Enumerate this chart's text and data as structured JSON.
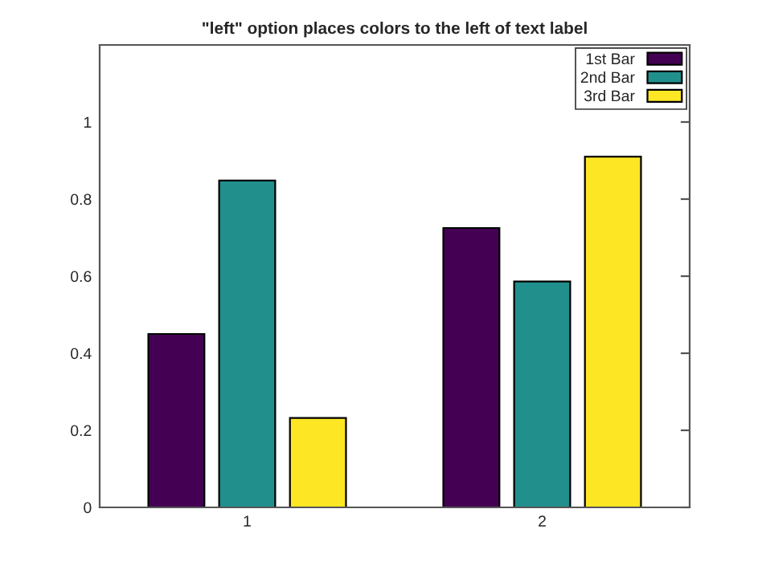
{
  "chart_data": {
    "type": "bar",
    "title": "\"left\" option places colors to the left of text label",
    "categories": [
      "1",
      "2"
    ],
    "series": [
      {
        "name": "1st Bar",
        "color": "#440154",
        "values": [
          0.45,
          0.725
        ]
      },
      {
        "name": "2nd Bar",
        "color": "#21908d",
        "values": [
          0.848,
          0.586
        ]
      },
      {
        "name": "3rd Bar",
        "color": "#fde725",
        "values": [
          0.232,
          0.91
        ]
      }
    ],
    "ylim": [
      0,
      1.2
    ],
    "yticks": [
      0,
      0.2,
      0.4,
      0.6,
      0.8,
      1
    ],
    "grid": false,
    "legend": "top right"
  }
}
